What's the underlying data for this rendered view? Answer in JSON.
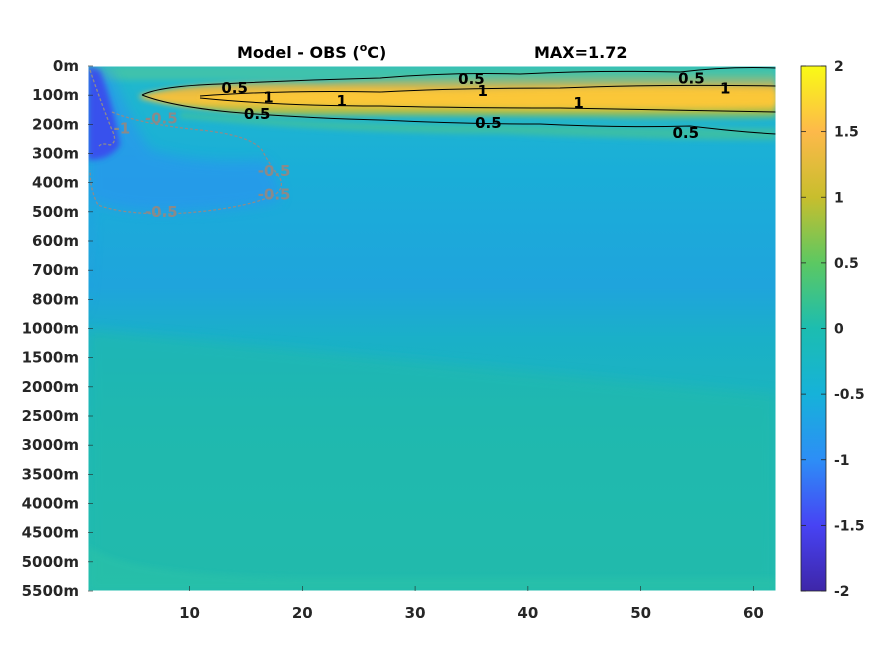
{
  "chart_data": {
    "type": "heatmap",
    "title": "Model - OBS (oC)",
    "title_main": "Model - OBS (",
    "title_sup": "o",
    "title_tail": "C)",
    "max_label": "MAX=1.72",
    "y_tick_labels": [
      "0m",
      "100m",
      "200m",
      "300m",
      "400m",
      "500m",
      "600m",
      "700m",
      "800m",
      "1000m",
      "1500m",
      "2000m",
      "2500m",
      "3000m",
      "3500m",
      "4000m",
      "4500m",
      "5000m",
      "5500m"
    ],
    "x_ticks": [
      10,
      20,
      30,
      40,
      50,
      60
    ],
    "x_tick_labels": [
      "10",
      "20",
      "30",
      "40",
      "50",
      "60"
    ],
    "xlim": [
      1,
      62
    ],
    "colorbar": {
      "range": [
        -2,
        2
      ],
      "ticks": [
        2,
        1.5,
        1,
        0.5,
        0,
        -0.5,
        -1,
        -1.5,
        -2
      ],
      "tick_labels": [
        "2",
        "1.5",
        "1",
        "0.5",
        "0",
        "-0.5",
        "-1",
        "-1.5",
        "-2"
      ],
      "colors": [
        "#3e26a8",
        "#4743f4",
        "#2d8ef6",
        "#16b2d9",
        "#1cbdb0",
        "#5cc862",
        "#c8be2d",
        "#fdb94a",
        "#f9fb15"
      ]
    },
    "contour_labels": [
      {
        "text": "0.5",
        "x": 14.0,
        "level": 1.5,
        "style": "dark"
      },
      {
        "text": "1",
        "x": 17.0,
        "level": 2.15,
        "style": "dark"
      },
      {
        "text": "1",
        "x": 23.5,
        "level": 2.4,
        "style": "dark"
      },
      {
        "text": "0.5",
        "x": 16.0,
        "level": 3.3,
        "style": "dark"
      },
      {
        "text": "0.5",
        "x": 35.0,
        "level": 0.9,
        "style": "dark"
      },
      {
        "text": "1",
        "x": 36.0,
        "level": 1.7,
        "style": "dark"
      },
      {
        "text": "1",
        "x": 44.5,
        "level": 2.55,
        "style": "dark"
      },
      {
        "text": "0.5",
        "x": 36.5,
        "level": 3.9,
        "style": "dark"
      },
      {
        "text": "0.5",
        "x": 54.5,
        "level": 0.85,
        "style": "dark"
      },
      {
        "text": "1",
        "x": 57.5,
        "level": 1.55,
        "style": "dark"
      },
      {
        "text": "0.5",
        "x": 54.0,
        "level": 4.6,
        "style": "dark"
      },
      {
        "text": "-1",
        "x": 4.0,
        "level": 4.3,
        "style": "gray"
      },
      {
        "text": "-0.5",
        "x": 7.5,
        "level": 3.6,
        "style": "gray"
      },
      {
        "text": "-0.5",
        "x": 17.5,
        "level": 7.2,
        "style": "gray"
      },
      {
        "text": "-0.5",
        "x": 7.5,
        "level": 10.0,
        "style": "gray"
      },
      {
        "text": "-0.5",
        "x": 17.5,
        "level": 8.8,
        "style": "gray"
      }
    ]
  },
  "colors": {
    "deep_bg": "#1cb3c0",
    "mid_bg": "#1ea0da",
    "warm": "#f7b73c",
    "hot": "#fccf35",
    "cold": "#2b6ff0",
    "contour_dark": "#000000",
    "contour_gray": "#8c8c8c"
  }
}
